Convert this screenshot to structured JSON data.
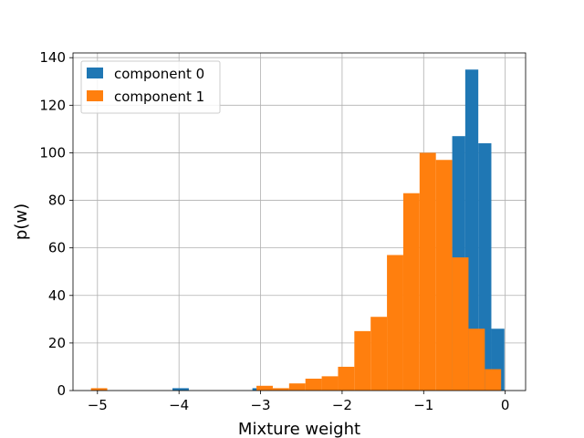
{
  "chart_data": {
    "type": "bar",
    "xlabel": "Mixture weight",
    "ylabel": "p(w)",
    "xlim": [
      -5.3,
      0.25
    ],
    "ylim": [
      0,
      142
    ],
    "xticks": [
      -5,
      -4,
      -3,
      -2,
      -1,
      0
    ],
    "yticks": [
      0,
      20,
      40,
      60,
      80,
      100,
      120,
      140
    ],
    "grid": true,
    "legend_position": "top-left",
    "series": [
      {
        "name": "component 0",
        "color": "#1f77b4",
        "bins": [
          {
            "x0": -4.08,
            "x1": -3.88,
            "value": 1
          },
          {
            "x0": -3.1,
            "x1": -3.0,
            "value": 1
          },
          {
            "x0": -0.65,
            "x1": -0.49,
            "value": 107
          },
          {
            "x0": -0.49,
            "x1": -0.33,
            "value": 135
          },
          {
            "x0": -0.33,
            "x1": -0.17,
            "value": 104
          },
          {
            "x0": -0.17,
            "x1": -0.01,
            "value": 26
          }
        ]
      },
      {
        "name": "component 1",
        "color": "#ff7f0e",
        "bins": [
          {
            "x0": -5.08,
            "x1": -4.88,
            "value": 1
          },
          {
            "x0": -3.05,
            "x1": -2.85,
            "value": 2
          },
          {
            "x0": -2.85,
            "x1": -2.65,
            "value": 1
          },
          {
            "x0": -2.65,
            "x1": -2.45,
            "value": 3
          },
          {
            "x0": -2.45,
            "x1": -2.25,
            "value": 5
          },
          {
            "x0": -2.25,
            "x1": -2.05,
            "value": 6
          },
          {
            "x0": -2.05,
            "x1": -1.85,
            "value": 10
          },
          {
            "x0": -1.85,
            "x1": -1.65,
            "value": 25
          },
          {
            "x0": -1.65,
            "x1": -1.45,
            "value": 31
          },
          {
            "x0": -1.45,
            "x1": -1.25,
            "value": 57
          },
          {
            "x0": -1.25,
            "x1": -1.05,
            "value": 83
          },
          {
            "x0": -1.05,
            "x1": -0.85,
            "value": 100
          },
          {
            "x0": -0.85,
            "x1": -0.65,
            "value": 97
          },
          {
            "x0": -0.65,
            "x1": -0.45,
            "value": 56
          },
          {
            "x0": -0.45,
            "x1": -0.25,
            "value": 26
          },
          {
            "x0": -0.25,
            "x1": -0.05,
            "value": 9
          }
        ]
      }
    ]
  }
}
